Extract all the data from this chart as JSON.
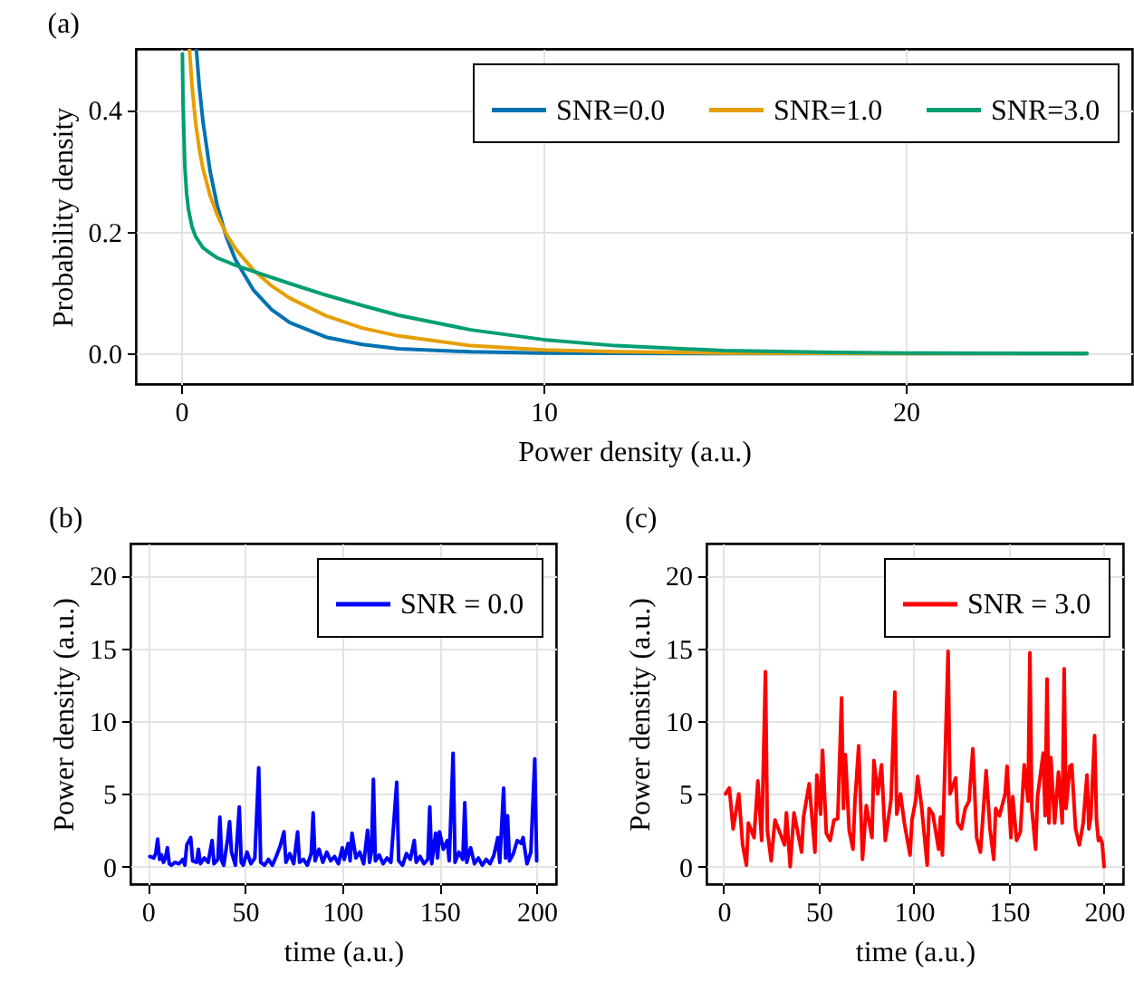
{
  "chart_data": [
    {
      "type": "line",
      "title": "(a)",
      "xlabel": "Power density (a.u.)",
      "ylabel": "Probability density",
      "xlim": [
        -1.25,
        26.25
      ],
      "xticks": [
        0,
        10,
        20
      ],
      "ylim": [
        -0.05,
        0.5
      ],
      "yticks": [
        {
          "value": 0,
          "label": "0.0"
        },
        {
          "value": 0.2,
          "label": "0.2"
        },
        {
          "value": 0.4,
          "label": "0.4"
        }
      ],
      "grid": true,
      "legend": "top right",
      "line_style": "solid",
      "marker": "none",
      "series": [
        {
          "name": "SNR=0.0",
          "color": "#0072b2",
          "x": [
            0.42,
            0.5,
            0.6,
            0.8,
            1,
            1.25,
            1.5,
            2,
            2.5,
            3,
            4,
            5,
            6,
            8,
            10,
            15,
            20,
            25
          ],
          "values": [
            0.499,
            0.439,
            0.382,
            0.299,
            0.242,
            0.191,
            0.154,
            0.104,
            0.072,
            0.051,
            0.027,
            0.015,
            0.008,
            0.003,
            0.001,
            0,
            0,
            0
          ]
        },
        {
          "name": "SNR=1.0",
          "color": "#e69f00",
          "x": [
            0.23,
            0.3,
            0.4,
            0.5,
            0.6,
            0.8,
            1,
            1.25,
            1.5,
            2,
            2.5,
            3,
            4,
            5,
            6,
            8,
            10,
            12,
            15,
            20,
            25
          ],
          "values": [
            0.5,
            0.439,
            0.378,
            0.336,
            0.304,
            0.259,
            0.227,
            0.196,
            0.172,
            0.137,
            0.111,
            0.091,
            0.062,
            0.042,
            0.029,
            0.013,
            0.006,
            0.003,
            0.001,
            0,
            0
          ]
        },
        {
          "name": "SNR=3.0",
          "color": "#009e73",
          "x": [
            0.035,
            0.05,
            0.1,
            0.15,
            0.2,
            0.3,
            0.4,
            0.6,
            0.8,
            1,
            1.5,
            2,
            3,
            4,
            5,
            6,
            8,
            10,
            12,
            15,
            18,
            20,
            25
          ],
          "values": [
            0.492,
            0.418,
            0.309,
            0.263,
            0.237,
            0.208,
            0.192,
            0.174,
            0.165,
            0.157,
            0.145,
            0.135,
            0.115,
            0.096,
            0.079,
            0.063,
            0.039,
            0.023,
            0.013,
            0.005,
            0.002,
            0.001,
            0
          ]
        }
      ]
    },
    {
      "type": "line",
      "title": "(b)",
      "xlabel": "time (a.u.)",
      "ylabel": "Power density (a.u.)",
      "xlim": [
        -9,
        210
      ],
      "xticks": [
        0,
        50,
        100,
        150,
        200
      ],
      "ylim": [
        -1.2,
        22.2
      ],
      "yticks": [
        0,
        5,
        10,
        15,
        20
      ],
      "grid": true,
      "legend": "top right",
      "line_style": "solid",
      "marker": "none",
      "series": [
        {
          "name": "SNR = 0.0",
          "color": "#0000ff",
          "x": [
            1,
            3,
            4,
            5,
            6,
            7,
            8,
            9,
            10,
            11,
            12,
            14,
            16,
            18,
            19,
            20,
            22,
            23,
            25,
            26,
            27,
            29,
            31,
            33,
            34,
            36,
            37,
            38,
            39,
            41,
            42,
            43,
            45,
            47,
            48,
            49,
            51,
            53,
            55,
            57,
            58,
            60,
            62,
            64,
            66,
            68,
            70,
            71,
            73,
            75,
            77,
            78,
            80,
            82,
            84,
            85,
            86,
            88,
            90,
            92,
            94,
            96,
            98,
            100,
            101,
            103,
            104,
            105,
            107,
            109,
            111,
            113,
            114,
            115,
            116,
            117,
            119,
            121,
            123,
            125,
            128,
            129,
            131,
            133,
            135,
            137,
            138,
            140,
            142,
            144,
            145,
            146,
            148,
            149,
            150,
            152,
            154,
            155,
            157,
            158,
            160,
            162,
            163,
            164,
            166,
            168,
            170,
            172,
            174,
            176,
            178,
            180,
            181,
            183,
            184,
            185,
            186,
            188,
            190,
            192,
            193,
            195,
            197,
            199,
            200
          ],
          "values": [
            0.7,
            0.6,
            0.9,
            1.9,
            0.5,
            0.8,
            0.3,
            0.6,
            1.3,
            0.2,
            0.1,
            0.3,
            0.2,
            0.5,
            0.1,
            1.5,
            2.0,
            0.4,
            0.3,
            1.2,
            0.2,
            0.6,
            0.3,
            1.8,
            0.2,
            0.5,
            3.4,
            0.4,
            0.1,
            1.9,
            3.1,
            1.0,
            0.1,
            4.1,
            0.3,
            0.1,
            1.0,
            0.2,
            0.6,
            6.8,
            0.3,
            0.1,
            0.5,
            0.1,
            0.7,
            1.4,
            2.4,
            0.3,
            0.9,
            0.2,
            2.4,
            0.3,
            0.5,
            0.1,
            0.9,
            3.7,
            0.4,
            1.2,
            0.3,
            1.0,
            0.4,
            0.7,
            0.2,
            1.3,
            0.5,
            1.6,
            0.4,
            2.3,
            0.6,
            1.0,
            0.2,
            2.5,
            0.3,
            1.0,
            6.0,
            0.4,
            0.8,
            0.2,
            0.6,
            0.3,
            5.8,
            0.4,
            0.1,
            0.9,
            0.5,
            1.8,
            0.3,
            0.7,
            0.2,
            0.5,
            4.1,
            0.2,
            2.3,
            0.6,
            2.4,
            1.2,
            1.8,
            0.4,
            7.8,
            0.3,
            1.0,
            0.5,
            4.4,
            0.3,
            1.3,
            0.2,
            0.6,
            0.1,
            0.5,
            0.2,
            0.8,
            2.0,
            0.3,
            5.4,
            0.6,
            3.5,
            0.4,
            0.9,
            1.8,
            1.6,
            2.0,
            0.2,
            1.0,
            7.4,
            0.4
          ]
        }
      ]
    },
    {
      "type": "line",
      "title": "(c)",
      "xlabel": "time (a.u.)",
      "ylabel": "Power density (a.u.)",
      "xlim": [
        -9,
        210
      ],
      "xticks": [
        0,
        50,
        100,
        150,
        200
      ],
      "ylim": [
        -1.2,
        22.2
      ],
      "yticks": [
        0,
        5,
        10,
        15,
        20
      ],
      "grid": true,
      "legend": "top right",
      "line_style": "solid",
      "marker": "none",
      "series": [
        {
          "name": "SNR = 3.0",
          "color": "#ff0000",
          "x": [
            1,
            3,
            5,
            8,
            10,
            12,
            13,
            16,
            18,
            20,
            22,
            23,
            25,
            27,
            30,
            32,
            33,
            35,
            37,
            41,
            42,
            45,
            48,
            49,
            51,
            52,
            54,
            56,
            58,
            60,
            62,
            63,
            64,
            66,
            68,
            69,
            71,
            73,
            75,
            78,
            79,
            81,
            83,
            85,
            88,
            90,
            91,
            93,
            95,
            98,
            99,
            101,
            102,
            104,
            107,
            108,
            110,
            113,
            114,
            115,
            118,
            119,
            122,
            123,
            125,
            127,
            129,
            131,
            133,
            135,
            138,
            140,
            142,
            143,
            145,
            148,
            149,
            151,
            152,
            154,
            156,
            158,
            160,
            161,
            162,
            164,
            165,
            168,
            169,
            170,
            171,
            172,
            174,
            176,
            178,
            179,
            180,
            182,
            183,
            185,
            187,
            189,
            191,
            192,
            193,
            195,
            196,
            197,
            198,
            199,
            200
          ],
          "values": [
            5.0,
            5.4,
            2.6,
            5.0,
            1.5,
            0.1,
            3.0,
            2.0,
            5.9,
            1.8,
            13.4,
            2.5,
            0.4,
            3.2,
            2.2,
            1.5,
            3.7,
            0.0,
            3.7,
            1.0,
            3.4,
            5.7,
            1.0,
            6.3,
            3.6,
            8.0,
            2.3,
            1.8,
            3.2,
            3.3,
            11.6,
            4.0,
            7.7,
            2.5,
            1.2,
            4.4,
            8.3,
            0.5,
            4.2,
            2.0,
            7.3,
            5.0,
            7.0,
            1.8,
            4.6,
            12.0,
            3.6,
            5.0,
            3.0,
            0.8,
            3.2,
            4.6,
            6.2,
            4.2,
            0.1,
            4.0,
            3.6,
            1.2,
            3.4,
            0.8,
            14.8,
            5.0,
            6.1,
            3.0,
            2.6,
            4.0,
            4.5,
            8.1,
            2.0,
            1.0,
            6.6,
            2.6,
            0.5,
            4.0,
            3.5,
            5.0,
            6.9,
            2.0,
            4.8,
            1.8,
            2.4,
            7.0,
            4.5,
            14.7,
            4.0,
            1.2,
            4.8,
            7.8,
            3.5,
            12.9,
            3.0,
            7.5,
            3.0,
            6.5,
            3.0,
            13.6,
            4.0,
            6.9,
            7.0,
            2.6,
            1.5,
            3.0,
            6.3,
            2.6,
            3.4,
            9.0,
            3.2,
            1.8,
            2.0,
            1.6,
            0.0
          ]
        }
      ]
    }
  ]
}
